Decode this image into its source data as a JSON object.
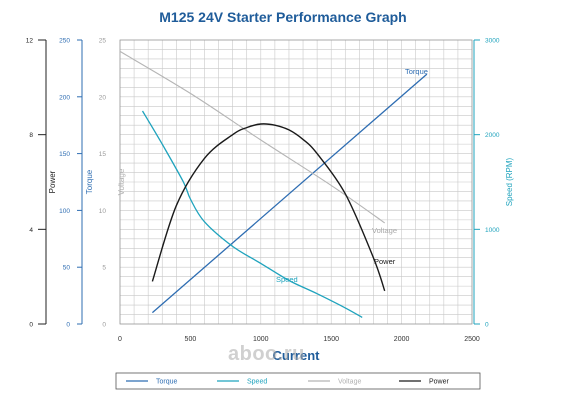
{
  "colors": {
    "torque": "#2e6db2",
    "speed": "#1fa3bd",
    "voltage": "#b5b5b5",
    "power": "#1a1a1a",
    "grid": "#c8c8c8",
    "title": "#1f5c9a"
  },
  "watermark": "aboo.ru",
  "chart_data": {
    "type": "line",
    "title": "M125 24V Starter Performance Graph",
    "xlabel": "Current",
    "xlim": [
      0,
      2500
    ],
    "x_ticks": [
      "0",
      "500",
      "1000",
      "1500",
      "2000",
      "2500"
    ],
    "grid": true,
    "legend_position": "bottom",
    "axes": {
      "power": {
        "label": "Power",
        "ylim": [
          0,
          12
        ],
        "ticks": [
          "0",
          "4",
          "8",
          "12"
        ]
      },
      "torque": {
        "label": "Torque",
        "ylim": [
          0,
          250
        ],
        "ticks": [
          "0",
          "50",
          "100",
          "150",
          "200",
          "250"
        ]
      },
      "voltage": {
        "label": "Voltage",
        "ylim": [
          0,
          25
        ],
        "ticks": [
          "0",
          "5",
          "10",
          "15",
          "20",
          "25"
        ]
      },
      "speed": {
        "label": "Speed (RPM)",
        "ylim": [
          0,
          3000
        ],
        "ticks": [
          "0",
          "1000",
          "2000",
          "3000"
        ]
      }
    },
    "series": [
      {
        "name": "Torque",
        "axis": "torque",
        "x": [
          230,
          2180
        ],
        "y": [
          10,
          220
        ]
      },
      {
        "name": "Speed",
        "axis": "speed",
        "x": [
          160,
          300,
          450,
          500,
          600,
          800,
          1000,
          1200,
          1400,
          1600,
          1720
        ],
        "y": [
          2250,
          1900,
          1500,
          1320,
          1080,
          820,
          640,
          460,
          320,
          170,
          70
        ]
      },
      {
        "name": "Voltage",
        "axis": "voltage",
        "x": [
          0,
          500,
          1000,
          1500,
          1880
        ],
        "y": [
          24,
          20.3,
          16.2,
          12.2,
          8.9
        ]
      },
      {
        "name": "Power",
        "axis": "power",
        "x": [
          230,
          400,
          600,
          800,
          900,
          1000,
          1100,
          1200,
          1300,
          1400,
          1600,
          1800,
          1880
        ],
        "y": [
          1.8,
          5.0,
          7.0,
          8.0,
          8.3,
          8.45,
          8.4,
          8.2,
          7.8,
          7.2,
          5.5,
          2.8,
          1.4
        ]
      }
    ],
    "annotations": [
      {
        "text": "Torque",
        "series": "Torque"
      },
      {
        "text": "Speed",
        "series": "Speed"
      },
      {
        "text": "Voltage",
        "series": "Voltage"
      },
      {
        "text": "Power",
        "series": "Power"
      }
    ],
    "legend": [
      "Torque",
      "Speed",
      "Voltage",
      "Power"
    ]
  }
}
